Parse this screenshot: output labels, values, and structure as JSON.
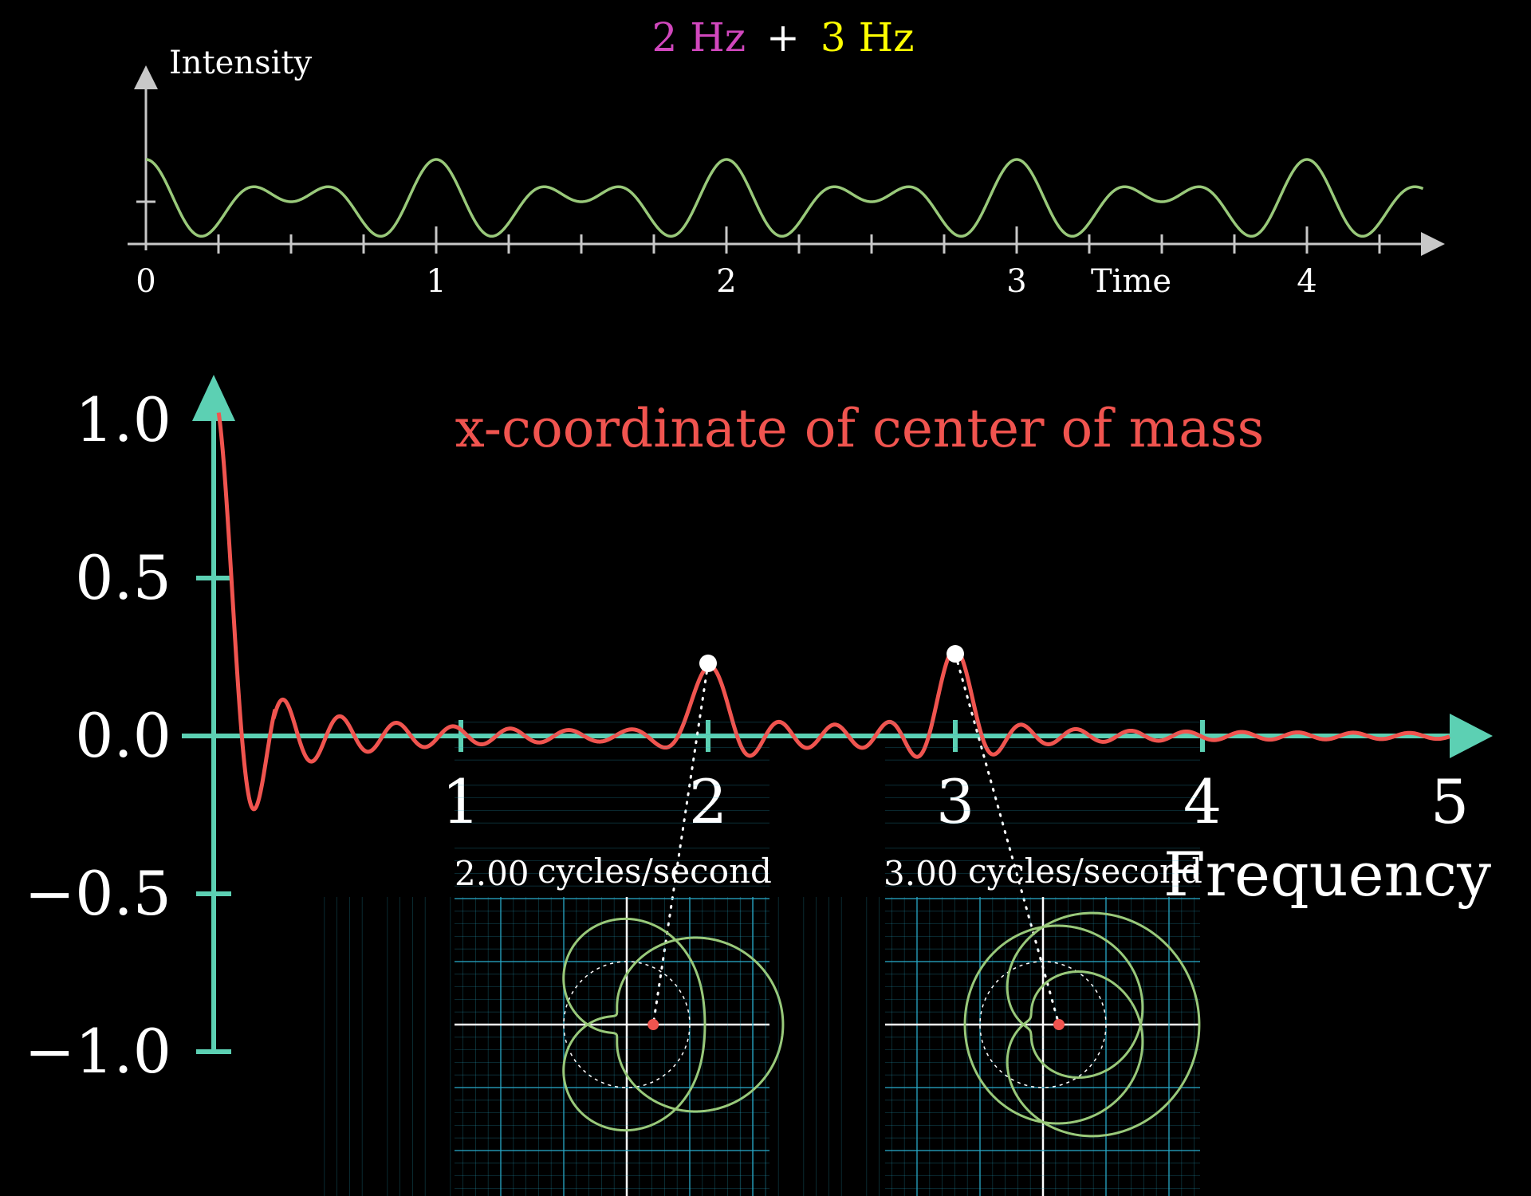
{
  "title": {
    "part1": "2 Hz",
    "plus": "+",
    "part2": "3 Hz",
    "part1_color": "#d147bd",
    "plus_color": "#ffffff",
    "part2_color": "#ffff00"
  },
  "colors": {
    "signal": "#99c97a",
    "axis_top": "#c8c8c8",
    "axis_bottom": "#5cd0b3",
    "transform": "#f0544f",
    "grid": "#29abca",
    "dot": "#ffffff",
    "center_of_mass": "#f0544f"
  },
  "chart_data": [
    {
      "type": "line",
      "name": "signal",
      "ylabel": "Intensity",
      "xlabel": "Time",
      "x_ticks": [
        "0",
        "1",
        "2",
        "3",
        "4"
      ],
      "xlim": [
        0,
        4.4
      ],
      "ylim": [
        0,
        2.1
      ],
      "components_hz": [
        2,
        3
      ],
      "grid": false
    },
    {
      "type": "line",
      "name": "fourier_x",
      "title": "x-coordinate of center of mass",
      "xlabel": "Frequency",
      "x_ticks": [
        "1",
        "2",
        "3",
        "4",
        "5"
      ],
      "y_ticks": [
        "1.0",
        "0.5",
        "0.0",
        "−0.5",
        "−1.0"
      ],
      "xlim": [
        0,
        5
      ],
      "ylim": [
        -1,
        1
      ],
      "highlighted_points": [
        {
          "x": 2.0,
          "y": 0.23
        },
        {
          "x": 3.0,
          "y": 0.26
        }
      ],
      "grid": false
    }
  ],
  "insets": [
    {
      "value": "2.00",
      "unit": "cycles/second",
      "winding_freq": 2.0
    },
    {
      "value": "3.00",
      "unit": "cycles/second",
      "winding_freq": 3.0
    }
  ]
}
